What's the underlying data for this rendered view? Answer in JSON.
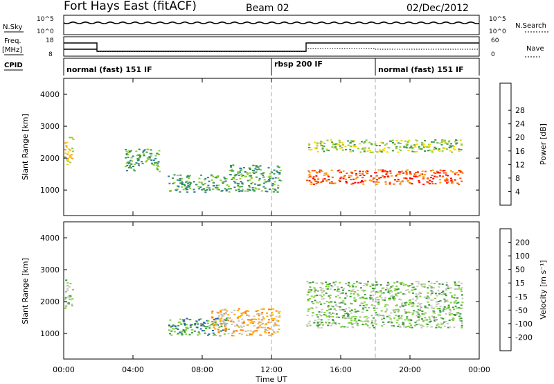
{
  "header": {
    "station": "Fort Hays East (fitACF)",
    "beam": "Beam 02",
    "date": "02/Dec/2012"
  },
  "noise_panel": {
    "left_label": "N.Sky",
    "right_label": "N.Search",
    "tick_high": "10^5",
    "tick_low": "10^0"
  },
  "freq_panel": {
    "left_label_1": "Freq.",
    "left_label_2": "[MHz]",
    "right_label": "Nave",
    "left_ticks": [
      "18",
      "8"
    ],
    "right_ticks": [
      "60",
      "0"
    ]
  },
  "cpid_panel": {
    "label": "CPID",
    "modes": [
      {
        "name": "normal (fast) 151 IF",
        "start_h": 0
      },
      {
        "name": "rbsp 200 IF",
        "start_h": 12
      },
      {
        "name": "normal (fast) 151 IF",
        "start_h": 18
      }
    ]
  },
  "colors": {
    "power_scale": [
      "#0000ff",
      "#1c3fa8",
      "#2f7f8f",
      "#3a9a4a",
      "#8ccc3c",
      "#ffd400",
      "#ff9a00",
      "#ff5500",
      "#ff0000"
    ],
    "velocity_scale": [
      "#1a2fa0",
      "#2a60b0",
      "#3d9a3d",
      "#7fd43c",
      "#c8c8c0",
      "#ffb000",
      "#ff8000",
      "#ff4000",
      "#ff0000"
    ]
  },
  "chart_data": [
    {
      "type": "heatmap",
      "name": "power",
      "ylabel": "Slant Range [km]",
      "xlim": [
        0,
        24
      ],
      "ylim": [
        200,
        4500
      ],
      "yticks": [
        1000,
        2000,
        3000,
        4000
      ],
      "colorbar": {
        "label": "Power [dB]",
        "ticks": [
          4,
          8,
          12,
          16,
          20,
          24,
          28
        ],
        "range": [
          0,
          30
        ]
      },
      "features": [
        {
          "t0": 0.0,
          "t1": 0.5,
          "r0": 1800,
          "r1": 2700,
          "level": 18
        },
        {
          "t0": 3.5,
          "t1": 5.5,
          "r0": 1600,
          "r1": 2300,
          "level": 12
        },
        {
          "t0": 6.0,
          "t1": 9.5,
          "r0": 950,
          "r1": 1500,
          "level": 12
        },
        {
          "t0": 9.5,
          "t1": 12.5,
          "r0": 950,
          "r1": 1800,
          "level": 12
        },
        {
          "t0": 14.0,
          "t1": 23.0,
          "r0": 1200,
          "r1": 1650,
          "level": 26
        },
        {
          "t0": 14.0,
          "t1": 23.0,
          "r0": 2200,
          "r1": 2600,
          "level": 16
        }
      ]
    },
    {
      "type": "heatmap",
      "name": "velocity",
      "ylabel": "Slant Range [km]",
      "xlim": [
        0,
        24
      ],
      "ylim": [
        200,
        4500
      ],
      "yticks": [
        1000,
        2000,
        3000,
        4000
      ],
      "colorbar": {
        "label": "Velocity [m s⁻¹]",
        "ticks": [
          200,
          100,
          50,
          15,
          -15,
          -50,
          -100,
          -200
        ]
      },
      "features": [
        {
          "t0": 0.0,
          "t1": 0.5,
          "r0": 1800,
          "r1": 2700,
          "level": 0
        },
        {
          "t0": 6.0,
          "t1": 9.5,
          "r0": 950,
          "r1": 1500,
          "level": 50
        },
        {
          "t0": 8.5,
          "t1": 12.5,
          "r0": 950,
          "r1": 1800,
          "level": -50
        },
        {
          "t0": 14.0,
          "t1": 23.0,
          "r0": 1200,
          "r1": 2650,
          "level": 0
        }
      ]
    }
  ],
  "xaxis": {
    "ticks": [
      "00:00",
      "04:00",
      "08:00",
      "12:00",
      "16:00",
      "20:00",
      "00:00"
    ],
    "label": "Time UT"
  }
}
